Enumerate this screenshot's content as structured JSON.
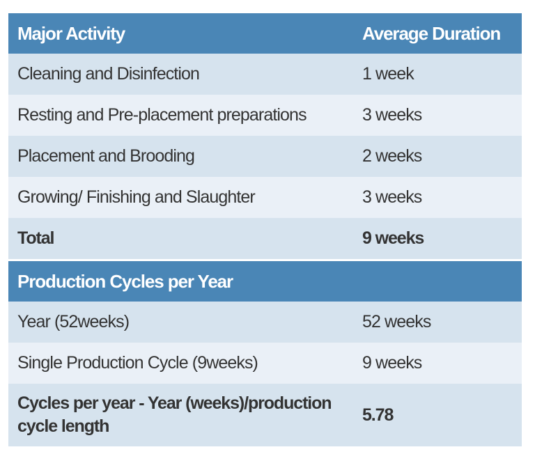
{
  "table1": {
    "headers": {
      "activity": "Major Activity",
      "duration": "Average Duration"
    },
    "rows": [
      {
        "activity": "Cleaning and Disinfection",
        "duration": "1 week"
      },
      {
        "activity": "Resting and Pre-placement preparations",
        "duration": "3 weeks"
      },
      {
        "activity": "Placement and Brooding",
        "duration": "2 weeks"
      },
      {
        "activity": "Growing/ Finishing and Slaughter",
        "duration": "3 weeks"
      }
    ],
    "total": {
      "label": "Total",
      "value": "9 weeks"
    }
  },
  "table2": {
    "header": "Production Cycles per Year",
    "rows": [
      {
        "label": "Year (52weeks)",
        "value": "52 weeks"
      },
      {
        "label": "Single Production Cycle (9weeks)",
        "value": "9 weeks"
      }
    ],
    "result": {
      "label": "Cycles per year - Year (weeks)/production cycle length",
      "value": "5.78"
    }
  },
  "colors": {
    "header_bg": "#4a86b6",
    "row_dark": "#d6e3ee",
    "row_light": "#eaf0f7",
    "text": "#333333"
  }
}
